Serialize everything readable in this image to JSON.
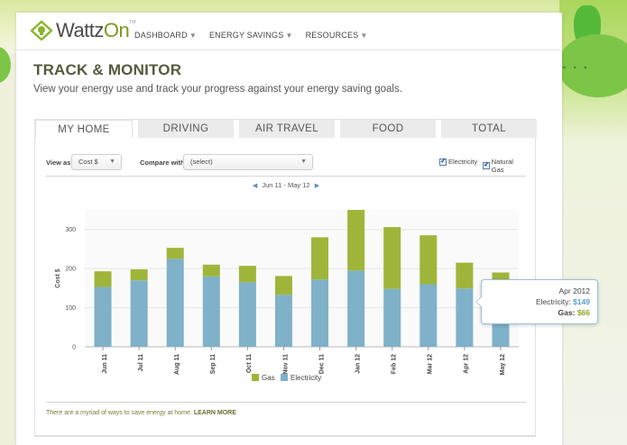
{
  "app": {
    "logo_main": "Wattz",
    "logo_accent": "On",
    "logo_tm": "TM",
    "logo_icon": "bulb-house-icon"
  },
  "nav": {
    "items": [
      {
        "label": "DASHBOARD"
      },
      {
        "label": "ENERGY SAVINGS"
      },
      {
        "label": "RESOURCES"
      }
    ]
  },
  "page": {
    "title": "TRACK & MONITOR",
    "subtitle": "View your energy use and track your progress against your energy saving goals."
  },
  "tabs": [
    {
      "label": "MY HOME",
      "active": true
    },
    {
      "label": "DRIVING",
      "active": false
    },
    {
      "label": "AIR TRAVEL",
      "active": false
    },
    {
      "label": "FOOD",
      "active": false
    },
    {
      "label": "TOTAL",
      "active": false
    }
  ],
  "controls": {
    "view_as_label": "View as",
    "view_as_value": "Cost $",
    "compare_label": "Compare with",
    "compare_value": "(select)",
    "electricity_label": "Electricity",
    "electricity_checked": true,
    "gas_label": "Natural Gas",
    "gas_checked": true
  },
  "period": {
    "label": "Jun 11 - May 12",
    "prev_icon": "triangle-left-icon",
    "next_icon": "triangle-right-icon"
  },
  "chart_data": {
    "type": "bar",
    "stacked": true,
    "categories": [
      "Jun 11",
      "Jul 11",
      "Aug 11",
      "Sep 11",
      "Oct 11",
      "Nov 11",
      "Dec 11",
      "Jan 12",
      "Feb 12",
      "Mar 12",
      "Apr 12",
      "May 12"
    ],
    "series": [
      {
        "name": "Electricity",
        "color": "#7fb1c8",
        "values": [
          153,
          170,
          225,
          180,
          165,
          133,
          172,
          195,
          148,
          160,
          149,
          150
        ]
      },
      {
        "name": "Gas",
        "color": "#9fb53a",
        "values": [
          40,
          28,
          28,
          30,
          42,
          48,
          108,
          155,
          158,
          125,
          66,
          40
        ]
      }
    ],
    "ylabel": "Cost $",
    "ylim": [
      0,
      350
    ],
    "yticks": [
      0,
      100,
      200,
      300
    ],
    "grid": true,
    "legend": "bottom"
  },
  "tooltip": {
    "title": "Apr 2012",
    "elec_label": "Electricity:",
    "elec_value": "$149",
    "gas_label": "Gas:",
    "gas_value": "$66"
  },
  "footer": {
    "text": "There are a myriad of ways to save energy at home.",
    "link": "LEARN MORE"
  }
}
